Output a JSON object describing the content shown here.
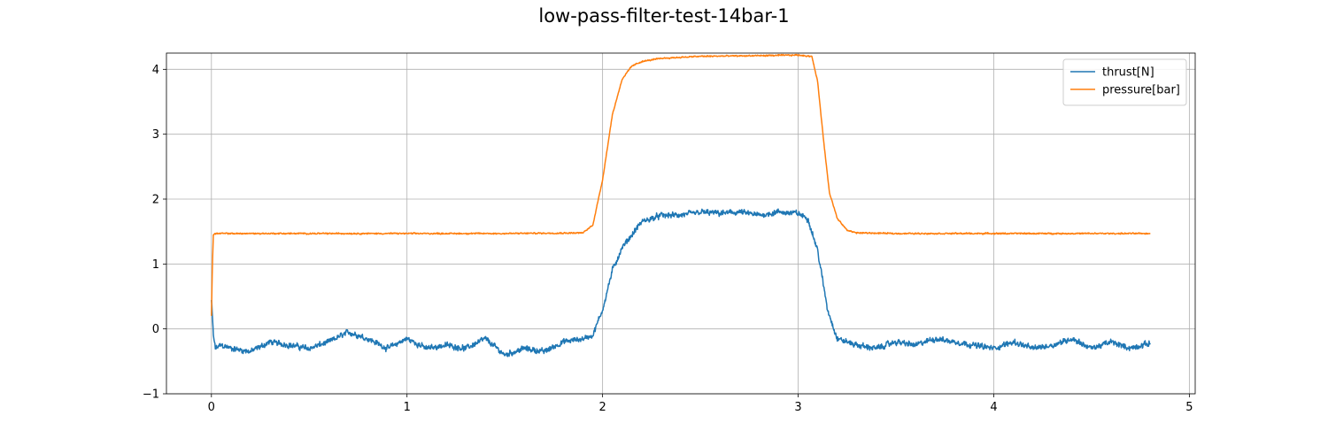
{
  "chart_data": {
    "type": "line",
    "title": "low-pass-filter-test-14bar-1",
    "xlabel": "",
    "ylabel": "",
    "xlim": [
      -0.23,
      5.03
    ],
    "ylim": [
      -1.0,
      4.25
    ],
    "xticks": [
      0,
      1,
      2,
      3,
      4,
      5
    ],
    "yticks": [
      -1,
      0,
      1,
      2,
      3,
      4
    ],
    "grid": true,
    "legend_position": "top-right",
    "series": [
      {
        "name": "thrust[N]",
        "color": "#1f77b4",
        "x": [
          0,
          0.01,
          0.02,
          0.05,
          0.1,
          0.2,
          0.3,
          0.4,
          0.5,
          0.6,
          0.7,
          0.8,
          0.9,
          1.0,
          1.1,
          1.2,
          1.3,
          1.4,
          1.5,
          1.6,
          1.7,
          1.8,
          1.9,
          1.95,
          2.0,
          2.05,
          2.1,
          2.15,
          2.2,
          2.3,
          2.4,
          2.5,
          2.6,
          2.7,
          2.8,
          2.9,
          3.0,
          3.05,
          3.1,
          3.15,
          3.2,
          3.3,
          3.4,
          3.5,
          3.6,
          3.7,
          3.8,
          3.9,
          4.0,
          4.1,
          4.2,
          4.3,
          4.4,
          4.5,
          4.6,
          4.7,
          4.8
        ],
        "y": [
          0.45,
          -0.1,
          -0.3,
          -0.25,
          -0.3,
          -0.35,
          -0.2,
          -0.25,
          -0.3,
          -0.2,
          -0.05,
          -0.15,
          -0.3,
          -0.15,
          -0.3,
          -0.25,
          -0.3,
          -0.15,
          -0.4,
          -0.3,
          -0.35,
          -0.2,
          -0.15,
          -0.1,
          0.3,
          0.9,
          1.25,
          1.45,
          1.65,
          1.75,
          1.75,
          1.8,
          1.78,
          1.8,
          1.75,
          1.8,
          1.78,
          1.7,
          1.2,
          0.3,
          -0.15,
          -0.25,
          -0.3,
          -0.2,
          -0.25,
          -0.15,
          -0.2,
          -0.25,
          -0.3,
          -0.2,
          -0.3,
          -0.25,
          -0.15,
          -0.3,
          -0.2,
          -0.3,
          -0.22
        ]
      },
      {
        "name": "pressure[bar]",
        "color": "#ff7f0e",
        "x": [
          0,
          0.005,
          0.01,
          0.02,
          0.1,
          0.5,
          1.0,
          1.5,
          1.9,
          1.95,
          2.0,
          2.05,
          2.1,
          2.15,
          2.2,
          2.3,
          2.5,
          2.8,
          3.0,
          3.07,
          3.1,
          3.13,
          3.16,
          3.2,
          3.25,
          3.3,
          3.5,
          4.0,
          4.5,
          4.8
        ],
        "y": [
          0.2,
          1.0,
          1.45,
          1.47,
          1.47,
          1.47,
          1.47,
          1.47,
          1.48,
          1.6,
          2.3,
          3.3,
          3.85,
          4.05,
          4.12,
          4.17,
          4.2,
          4.21,
          4.22,
          4.2,
          3.8,
          2.9,
          2.1,
          1.7,
          1.52,
          1.48,
          1.47,
          1.47,
          1.47,
          1.47
        ]
      }
    ]
  }
}
